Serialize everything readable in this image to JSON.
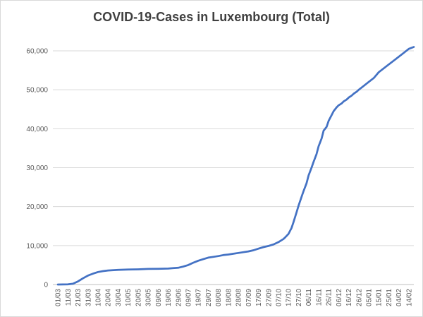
{
  "chart_data": {
    "type": "line",
    "title": "COVID-19-Cases in Luxembourg (Total)",
    "xlabel": "",
    "ylabel": "",
    "ylim": [
      0,
      60000
    ],
    "y_ticks": [
      "0",
      "10,000",
      "20,000",
      "30,000",
      "40,000",
      "50,000",
      "60,000"
    ],
    "x_ticks": [
      "01/03",
      "11/03",
      "21/03",
      "31/03",
      "10/04",
      "20/04",
      "30/04",
      "10/05",
      "20/05",
      "30/05",
      "09/06",
      "19/06",
      "29/06",
      "09/07",
      "19/07",
      "29/07",
      "08/08",
      "18/08",
      "28/08",
      "07/09",
      "17/09",
      "27/09",
      "07/10",
      "17/10",
      "27/10",
      "06/11",
      "16/11",
      "26/11",
      "06/12",
      "16/12",
      "26/12",
      "05/01",
      "15/01",
      "25/01",
      "04/02",
      "14/02"
    ],
    "grid": true,
    "legend": "none",
    "colors": {
      "line": "#4472c4",
      "grid": "#d9d9d9",
      "axis": "#bfbfbf",
      "text": "#595959",
      "title": "#404040"
    },
    "series": [
      {
        "x": [
          "01/03",
          "11/03",
          "16/03",
          "21/03",
          "26/03",
          "31/03",
          "05/04",
          "10/04",
          "15/04",
          "20/04",
          "30/04",
          "10/05",
          "20/05",
          "30/05",
          "09/06",
          "19/06",
          "24/06",
          "29/06",
          "04/07",
          "09/07",
          "14/07",
          "19/07",
          "24/07",
          "29/07",
          "03/08",
          "08/08",
          "13/08",
          "18/08",
          "23/08",
          "28/08",
          "02/09",
          "07/09",
          "12/09",
          "17/09",
          "22/09",
          "27/09",
          "02/10",
          "07/10",
          "12/10",
          "14/10",
          "17/10",
          "20/10",
          "22/10",
          "25/10",
          "27/10",
          "30/10",
          "01/11",
          "04/11",
          "06/11",
          "09/11",
          "11/11",
          "14/11",
          "16/11",
          "19/11",
          "21/11",
          "24/11",
          "26/11",
          "29/11",
          "01/12",
          "04/12",
          "06/12",
          "09/12",
          "11/12",
          "14/12",
          "16/12",
          "19/12",
          "21/12",
          "24/12",
          "26/12",
          "31/12",
          "05/01",
          "10/01",
          "15/01",
          "20/01",
          "25/01",
          "30/01",
          "04/02",
          "09/02",
          "14/02",
          "19/02"
        ],
        "values": [
          0,
          30,
          200,
          800,
          1600,
          2300,
          2800,
          3200,
          3450,
          3600,
          3750,
          3850,
          3900,
          4000,
          4050,
          4100,
          4200,
          4300,
          4600,
          5000,
          5600,
          6100,
          6500,
          6900,
          7100,
          7300,
          7550,
          7700,
          7900,
          8100,
          8300,
          8500,
          8800,
          9200,
          9600,
          9900,
          10300,
          10900,
          11700,
          12200,
          13000,
          14500,
          16000,
          18500,
          20200,
          22500,
          24000,
          26000,
          28000,
          30000,
          31500,
          33500,
          35500,
          37500,
          39500,
          40500,
          42000,
          43500,
          44500,
          45500,
          46000,
          46500,
          47000,
          47500,
          48000,
          48500,
          49000,
          49500,
          50000,
          51000,
          52000,
          53000,
          54500,
          55500,
          56500,
          57500,
          58500,
          59500,
          60500,
          61000
        ]
      }
    ]
  }
}
